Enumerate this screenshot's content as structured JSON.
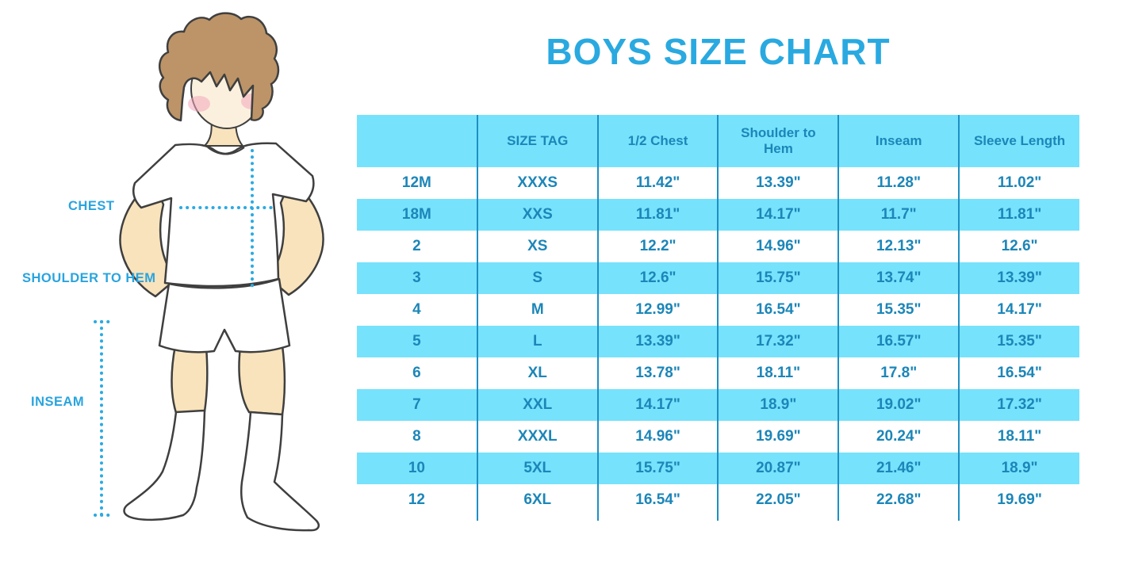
{
  "title": "BOYS SIZE CHART",
  "figure": {
    "labels": {
      "chest": "CHEST",
      "shoulder_to_hem": "SHOULDER TO HEM",
      "inseam": "INSEAM"
    }
  },
  "colors": {
    "title": "#29A9E0",
    "band": "#76E2FC",
    "table_text": "#1C86B8",
    "grid_line": "#1E8FC4",
    "label_text": "#29A4DF",
    "dotted_line": "#2BAAE2"
  },
  "chart_data": {
    "type": "table",
    "title": "BOYS SIZE CHART",
    "columns": [
      "",
      "SIZE TAG",
      "1/2 Chest",
      "Shoulder to Hem",
      "Inseam",
      "Sleeve Length"
    ],
    "rows": [
      [
        "12M",
        "XXXS",
        "11.42\"",
        "13.39\"",
        "11.28\"",
        "11.02\""
      ],
      [
        "18M",
        "XXS",
        "11.81\"",
        "14.17\"",
        "11.7\"",
        "11.81\""
      ],
      [
        "2",
        "XS",
        "12.2\"",
        "14.96\"",
        "12.13\"",
        "12.6\""
      ],
      [
        "3",
        "S",
        "12.6\"",
        "15.75\"",
        "13.74\"",
        "13.39\""
      ],
      [
        "4",
        "M",
        "12.99\"",
        "16.54\"",
        "15.35\"",
        "14.17\""
      ],
      [
        "5",
        "L",
        "13.39\"",
        "17.32\"",
        "16.57\"",
        "15.35\""
      ],
      [
        "6",
        "XL",
        "13.78\"",
        "18.11\"",
        "17.8\"",
        "16.54\""
      ],
      [
        "7",
        "XXL",
        "14.17\"",
        "18.9\"",
        "19.02\"",
        "17.32\""
      ],
      [
        "8",
        "XXXL",
        "14.96\"",
        "19.69\"",
        "20.24\"",
        "18.11\""
      ],
      [
        "10",
        "5XL",
        "15.75\"",
        "20.87\"",
        "21.46\"",
        "18.9\""
      ],
      [
        "12",
        "6XL",
        "16.54\"",
        "22.05\"",
        "22.68\"",
        "19.69\""
      ]
    ]
  }
}
